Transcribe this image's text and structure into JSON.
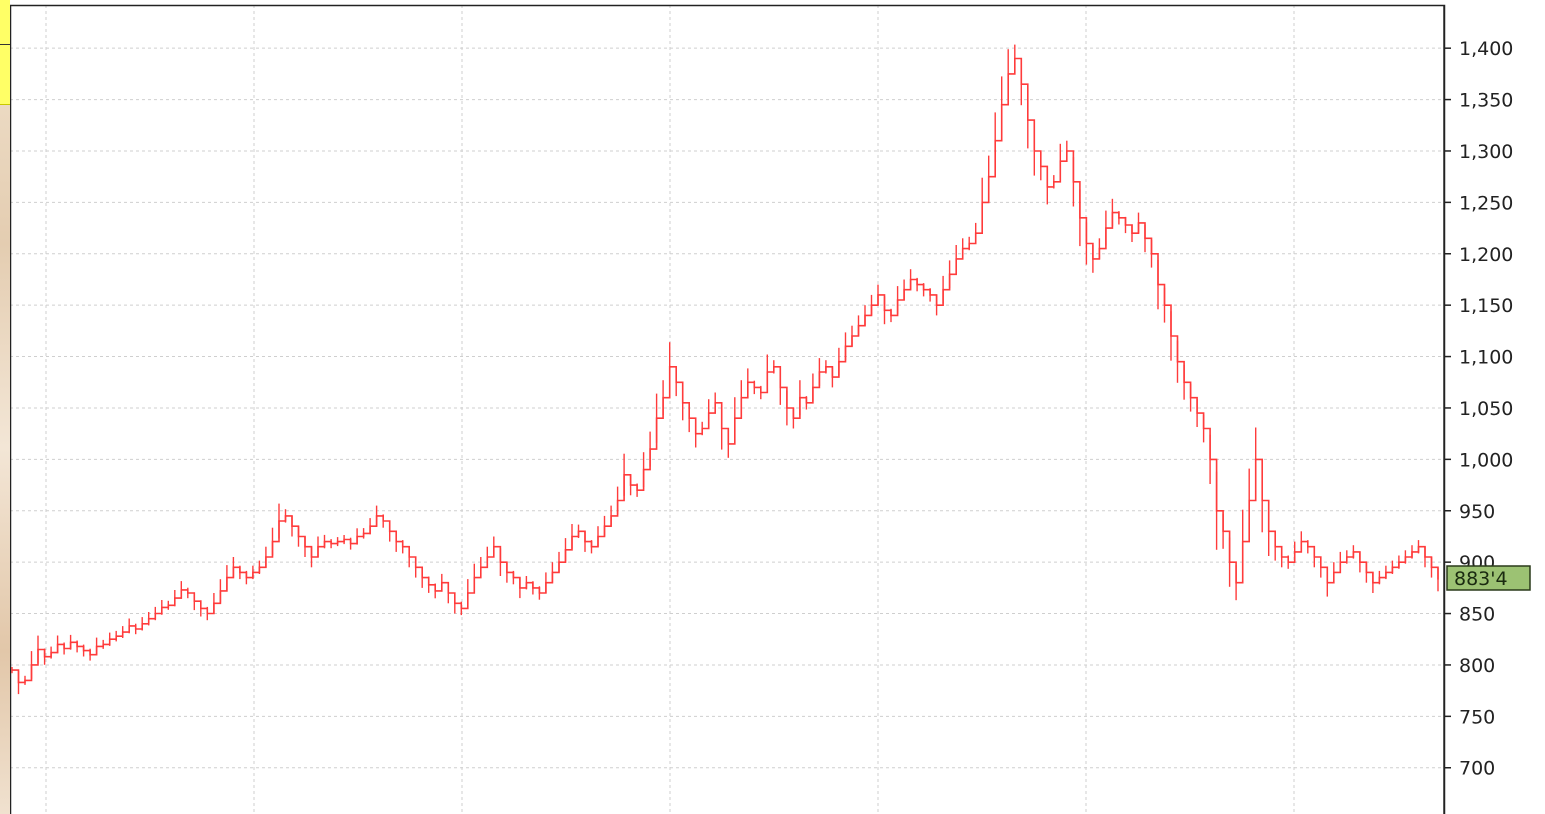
{
  "chart_data": {
    "type": "line",
    "title": "",
    "xlabel": "",
    "ylabel": "",
    "ylim": [
      655,
      1442
    ],
    "yticks": [
      700,
      750,
      800,
      850,
      900,
      950,
      1000,
      1050,
      1100,
      1150,
      1200,
      1250,
      1300,
      1350,
      1400
    ],
    "ytick_labels": [
      "700",
      "750",
      "800",
      "850",
      "900",
      "950",
      "1,000",
      "1,050",
      "1,100",
      "1,150",
      "1,200",
      "1,250",
      "1,300",
      "1,350",
      "1,400"
    ],
    "grid": true,
    "x_gridlines": 7,
    "last_price_label": "883'4",
    "series": [
      {
        "color": "#ff3b3b",
        "values": [
          795,
          783,
          785,
          800,
          815,
          808,
          812,
          820,
          816,
          822,
          818,
          814,
          810,
          818,
          820,
          825,
          828,
          832,
          838,
          835,
          840,
          845,
          850,
          856,
          858,
          865,
          873,
          870,
          862,
          855,
          850,
          860,
          872,
          885,
          895,
          890,
          885,
          890,
          895,
          905,
          920,
          940,
          945,
          935,
          925,
          915,
          905,
          915,
          920,
          918,
          920,
          922,
          918,
          925,
          928,
          935,
          945,
          940,
          930,
          920,
          915,
          905,
          895,
          885,
          878,
          872,
          880,
          870,
          860,
          855,
          870,
          885,
          895,
          905,
          915,
          900,
          890,
          885,
          875,
          880,
          875,
          870,
          880,
          890,
          900,
          912,
          925,
          930,
          920,
          915,
          925,
          935,
          945,
          960,
          985,
          975,
          970,
          990,
          1010,
          1040,
          1060,
          1090,
          1075,
          1055,
          1040,
          1025,
          1030,
          1045,
          1055,
          1030,
          1015,
          1040,
          1060,
          1075,
          1070,
          1065,
          1085,
          1090,
          1070,
          1050,
          1040,
          1060,
          1055,
          1070,
          1085,
          1090,
          1080,
          1095,
          1110,
          1120,
          1130,
          1140,
          1150,
          1160,
          1145,
          1140,
          1155,
          1165,
          1175,
          1170,
          1165,
          1160,
          1150,
          1165,
          1180,
          1195,
          1205,
          1210,
          1220,
          1250,
          1275,
          1310,
          1345,
          1375,
          1390,
          1365,
          1330,
          1300,
          1285,
          1265,
          1270,
          1290,
          1300,
          1270,
          1235,
          1210,
          1195,
          1205,
          1225,
          1240,
          1235,
          1228,
          1220,
          1230,
          1215,
          1200,
          1170,
          1150,
          1120,
          1095,
          1075,
          1060,
          1045,
          1030,
          1000,
          950,
          930,
          900,
          880,
          920,
          960,
          1000,
          960,
          930,
          915,
          905,
          900,
          910,
          920,
          915,
          905,
          895,
          880,
          890,
          900,
          905,
          910,
          900,
          890,
          880,
          885,
          890,
          895,
          900,
          905,
          910,
          915,
          905,
          895,
          883
        ]
      }
    ]
  }
}
